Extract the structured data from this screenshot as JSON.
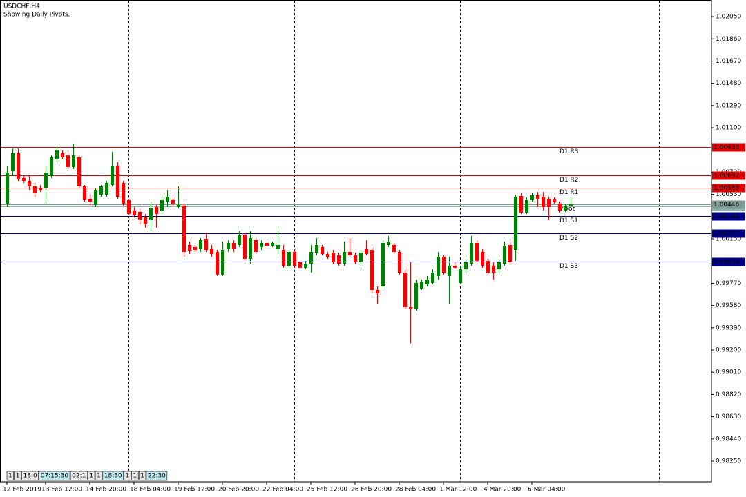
{
  "chart_data": {
    "type": "candlestick",
    "title": "USDCHF,H4",
    "subtitle": "Showing Daily Pivots.",
    "up_color": "#008000",
    "down_color": "#ff0000",
    "grid": false,
    "ylim": [
      0.98073,
      1.02192
    ],
    "yticks": [
      {
        "value": 1.0205,
        "label": "1.02050"
      },
      {
        "value": 1.0186,
        "label": "1.01860"
      },
      {
        "value": 1.0167,
        "label": "1.01670"
      },
      {
        "value": 1.0148,
        "label": "1.01480"
      },
      {
        "value": 1.0129,
        "label": "1.01290"
      },
      {
        "value": 1.011,
        "label": "1.01100"
      },
      {
        "value": 1.0072,
        "label": "1.00720"
      },
      {
        "value": 1.0053,
        "label": "1.00530"
      },
      {
        "value": 1.0015,
        "label": "1.00150"
      },
      {
        "value": 0.9977,
        "label": "0.99770"
      },
      {
        "value": 0.9958,
        "label": "0.99580"
      },
      {
        "value": 0.9939,
        "label": "0.99390"
      },
      {
        "value": 0.992,
        "label": "0.99200"
      },
      {
        "value": 0.9901,
        "label": "0.99010"
      },
      {
        "value": 0.9882,
        "label": "0.98820"
      },
      {
        "value": 0.9863,
        "label": "0.98630"
      },
      {
        "value": 0.9844,
        "label": "0.98440"
      },
      {
        "value": 0.9825,
        "label": "0.98250"
      }
    ],
    "categories": [
      "12 Feb 2019",
      null,
      null,
      null,
      null,
      null,
      null,
      "13 Feb 12:00",
      null,
      null,
      null,
      null,
      null,
      null,
      null,
      "14 Feb 20:00",
      null,
      null,
      null,
      null,
      null,
      null,
      null,
      "18 Feb 04:00",
      null,
      null,
      null,
      null,
      null,
      null,
      null,
      "19 Feb 12:00",
      null,
      null,
      null,
      null,
      null,
      null,
      null,
      "20 Feb 20:00",
      null,
      null,
      null,
      null,
      null,
      null,
      null,
      "22 Feb 04:00",
      null,
      null,
      null,
      null,
      null,
      null,
      null,
      "25 Feb 12:00",
      null,
      null,
      null,
      null,
      null,
      null,
      null,
      "26 Feb 20:00",
      null,
      null,
      null,
      null,
      null,
      null,
      null,
      "28 Feb 04:00",
      null,
      null,
      null,
      null,
      null,
      null,
      null,
      "1 Mar 12:00",
      null,
      null,
      null,
      null,
      null,
      null,
      null,
      "4 Mar 20:00",
      null,
      null,
      null,
      null,
      null,
      null,
      null,
      "6 Mar 04:00",
      null,
      null,
      null,
      null,
      null,
      null,
      null
    ],
    "open": [
      1.00451,
      1.00729,
      1.00882,
      1.0067,
      1.00646,
      1.00599,
      1.00587,
      1.00587,
      1.00687,
      1.00835,
      1.00882,
      1.00864,
      1.00764,
      1.00847,
      1.00599,
      1.00493,
      1.0044,
      1.00528,
      1.00528,
      1.0061,
      1.00776,
      1.00628,
      1.00481,
      1.00392,
      1.00381,
      1.00333,
      1.00316,
      1.00422,
      1.00392,
      1.00469,
      1.00481,
      1.00422,
      1.00434,
      1.00097,
      1.0008,
      1.00068,
      1.0015,
      1.00068,
      1.00038,
      0.99844,
      1.00068,
      1.00115,
      1.00097,
      1.00186,
      0.99979,
      1.00139,
      1.0008,
      1.00115,
      1.00091,
      1.00068,
      1.00056,
      0.9992,
      1.00038,
      0.9995,
      0.99903,
      0.99938,
      1.00032,
      1.0008,
      1.0002,
      1.00032,
      1.00009,
      0.99938,
      1.00038,
      1.00009,
      0.9995,
      1.00068,
      1.00056,
      0.99714,
      0.99743,
      1.00097,
      1.00097,
      1.00038,
      0.99861,
      0.99566,
      0.99548,
      0.99726,
      0.99761,
      0.99773,
      0.99832,
      0.99997,
      0.99832,
      0.9992,
      0.99773,
      0.99891,
      0.99938,
      1.00115,
      1.00038,
      0.99962,
      0.9992,
      0.99891,
      0.99938,
      1.00097,
      1.00056,
      1.00516,
      1.00375,
      1.00481,
      1.00522,
      1.0051,
      1.00493,
      1.00487,
      1.00451,
      1.00392,
      1.00434
    ],
    "high": [
      1.00776,
      1.00923,
      1.00923,
      1.00687,
      1.00687,
      1.00628,
      1.0061,
      1.00776,
      1.00864,
      1.00941,
      1.00906,
      1.00882,
      1.00965,
      1.00864,
      1.0061,
      1.00528,
      1.00587,
      1.0061,
      1.00646,
      1.00894,
      1.00805,
      1.00646,
      1.00493,
      1.00422,
      1.0041,
      1.00363,
      1.00469,
      1.0044,
      1.0051,
      1.00569,
      1.00504,
      1.00599,
      1.00451,
      1.00127,
      1.00097,
      1.00156,
      1.00198,
      1.00097,
      1.00056,
      1.00127,
      1.00139,
      1.00139,
      1.00215,
      1.00198,
      1.00215,
      1.00156,
      1.00139,
      1.00127,
      1.00127,
      1.00245,
      1.00097,
      1.00056,
      1.00056,
      0.99962,
      0.99962,
      1.00097,
      1.00156,
      1.00097,
      1.00038,
      1.00056,
      1.00032,
      1.00127,
      1.00156,
      1.00032,
      1.00056,
      1.00139,
      1.0008,
      0.99743,
      1.00139,
      1.00174,
      1.00115,
      1.00056,
      0.99891,
      0.9995,
      0.99802,
      0.99802,
      0.99832,
      0.99891,
      1.00038,
      1.00009,
      0.99997,
      0.9995,
      0.9992,
      0.99979,
      1.00174,
      1.00139,
      1.00068,
      0.99979,
      0.9995,
      0.99979,
      1.00127,
      1.00127,
      1.00528,
      1.0054,
      1.00504,
      1.0054,
      1.00551,
      1.00551,
      1.0051,
      1.00504,
      1.00469,
      1.00446,
      1.0051
    ],
    "low": [
      1.00422,
      1.00687,
      1.00646,
      1.00628,
      1.00569,
      1.0051,
      1.00551,
      1.00451,
      1.0067,
      1.00805,
      1.00835,
      1.00746,
      1.00746,
      1.00587,
      1.00469,
      1.00434,
      1.00422,
      1.0051,
      1.0051,
      1.00599,
      1.00493,
      1.00434,
      1.00351,
      1.00333,
      1.00274,
      1.00245,
      1.00215,
      1.00245,
      1.00363,
      1.00422,
      1.00434,
      1.0041,
      0.99997,
      1.0002,
      1.00038,
      1.00038,
      1.00038,
      0.99997,
      0.99832,
      0.99832,
      1.00038,
      1.00038,
      1.0008,
      0.99962,
      0.99938,
      1.0002,
      1.00056,
      1.0008,
      1.0008,
      1.00009,
      0.99903,
      0.99891,
      0.99903,
      0.99891,
      0.99891,
      0.99861,
      1.00009,
      1.00009,
      0.99979,
      0.99938,
      0.9992,
      0.9992,
      0.99997,
      0.99938,
      0.9992,
      1.00009,
      0.99684,
      0.99596,
      0.99726,
      1.0008,
      1.0002,
      0.99844,
      0.99548,
      0.99257,
      0.99537,
      0.99714,
      0.99743,
      0.99761,
      0.99802,
      0.99844,
      0.99596,
      0.99891,
      0.99761,
      0.99861,
      0.9992,
      0.9995,
      0.99903,
      0.99844,
      0.99802,
      0.99861,
      0.9992,
      0.99938,
      0.99962,
      1.00363,
      1.00363,
      1.00469,
      1.00422,
      1.00392,
      1.00316,
      1.00451,
      1.00375,
      1.00381,
      1.00422
    ],
    "close": [
      1.00717,
      1.00882,
      1.00658,
      1.00646,
      1.00599,
      1.0054,
      1.00569,
      1.00717,
      1.00847,
      1.00906,
      1.00847,
      1.00764,
      1.00864,
      1.00599,
      1.00481,
      1.00469,
      1.00569,
      1.00599,
      1.00628,
      1.00776,
      1.0051,
      1.00451,
      1.00363,
      1.00351,
      1.00316,
      1.00274,
      1.0041,
      1.00363,
      1.00481,
      1.0051,
      1.00451,
      1.0044,
      1.00038,
      1.0005,
      1.00056,
      1.00139,
      1.00056,
      1.0002,
      0.99844,
      1.00056,
      1.00115,
      1.00068,
      1.00186,
      0.99979,
      1.00156,
      1.00038,
      1.00115,
      1.00091,
      1.00115,
      1.00097,
      0.9992,
      1.00038,
      0.9992,
      0.99903,
      0.99938,
      1.00038,
      1.00097,
      1.0002,
      0.99997,
      0.9995,
      0.99938,
      1.00038,
      1.00009,
      0.9995,
      1.00032,
      1.0002,
      0.99714,
      0.99684,
      1.00115,
      1.00127,
      1.00038,
      0.99861,
      0.99566,
      0.99548,
      0.99773,
      0.99785,
      0.99802,
      0.99861,
      0.99997,
      0.99861,
      0.9992,
      0.99903,
      0.99891,
      0.9995,
      1.00115,
      0.99962,
      0.9992,
      0.99861,
      0.99861,
      0.9995,
      1.00091,
      0.9995,
      1.0051,
      1.00375,
      1.00481,
      1.00522,
      1.00493,
      1.00422,
      1.00422,
      1.00463,
      1.00392,
      1.00434,
      1.00446
    ],
    "last_price": {
      "value": 1.00425,
      "value_label": "1.00425",
      "color": "#8fb3aa"
    },
    "levels": {
      "names": [
        "D1 R3",
        "D1 R2",
        "D1 R1",
        "Pivot",
        "D1 S1",
        "D1 S2",
        "D1 S3"
      ],
      "values": [
        1.00938,
        1.00692,
        1.00588,
        1.00446,
        1.00342,
        1.002,
        0.99954
      ],
      "value_labels": [
        "1.00938",
        "1.00692",
        "1.00588",
        "1.00446",
        "1.00342",
        "1.00200",
        "0.99954"
      ],
      "colors": [
        "#e00000",
        "#e00000",
        "#e00000",
        "#7a9a93",
        "#00008b",
        "#00008b",
        "#00008b"
      ]
    }
  },
  "toolbar": [
    "1",
    "1",
    "18:0",
    "07:15:30",
    "02:1",
    "1",
    "1",
    "18:30",
    "1",
    "1",
    "1",
    "22:30"
  ]
}
